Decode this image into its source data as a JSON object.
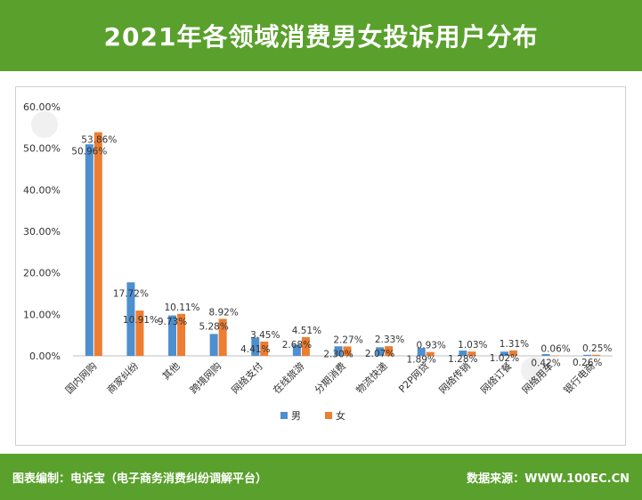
{
  "title": "2021年各领域消费男女投诉用户分布",
  "footer": {
    "left": "图表编制：电诉宝（电子商务消费纠纷调解平台）",
    "right": "数据来源：WWW.100EC.CN"
  },
  "watermark": "电诉宝",
  "colors": {
    "header": "#5aa02c",
    "male": "#4e8fd0",
    "female": "#ed7d31"
  },
  "chart_data": {
    "type": "bar",
    "title": "2021年各领域消费男女投诉用户分布",
    "categories": [
      "国内网购",
      "商家纠纷",
      "其他",
      "跨境网购",
      "网络支付",
      "在线旅游",
      "分期消费",
      "物流快递",
      "P2P网贷",
      "网络传销",
      "网络订餐",
      "网络用车",
      "银行电商"
    ],
    "series": [
      {
        "name": "男",
        "values": [
          50.96,
          17.72,
          9.73,
          5.28,
          4.41,
          2.68,
          2.3,
          2.07,
          1.89,
          1.28,
          1.02,
          0.42,
          0.26
        ],
        "labels": [
          "50.96%",
          "17.72%",
          "9.73%",
          "5.28%",
          "4.41%",
          "2.68%",
          "2.30%",
          "2.07%",
          "1.89%",
          "1.28%",
          "1.02%",
          "0.42%",
          "0.26%"
        ]
      },
      {
        "name": "女",
        "values": [
          53.86,
          10.91,
          10.11,
          8.92,
          3.45,
          4.51,
          2.27,
          2.33,
          0.93,
          1.03,
          1.31,
          0.06,
          0.25
        ],
        "labels": [
          "53.86%",
          "10.91%",
          "10.11%",
          "8.92%",
          "3.45%",
          "4.51%",
          "2.27%",
          "2.33%",
          "0.93%",
          "1.03%",
          "1.31%",
          "0.06%",
          "0.25%"
        ]
      }
    ],
    "ylim": [
      0,
      60
    ],
    "yticks": [
      "0.00%",
      "10.00%",
      "20.00%",
      "30.00%",
      "40.00%",
      "50.00%",
      "60.00%"
    ],
    "grid": false,
    "legend": "bottom"
  }
}
